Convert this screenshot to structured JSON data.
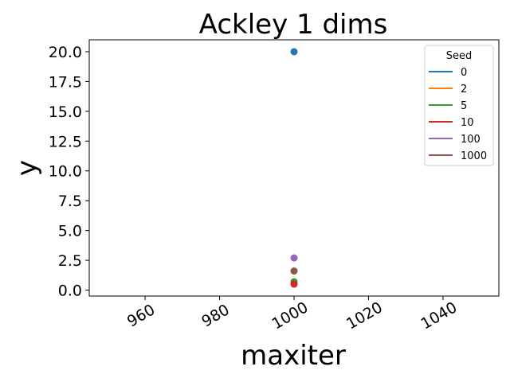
{
  "chart_data": {
    "type": "scatter",
    "title": "Ackley 1 dims",
    "xlabel": "maxiter",
    "ylabel": "y",
    "xlim": [
      945,
      1055
    ],
    "ylim": [
      -0.5,
      21.0
    ],
    "x_ticks": [
      960,
      980,
      1000,
      1020,
      1040
    ],
    "y_ticks": [
      0.0,
      2.5,
      5.0,
      7.5,
      10.0,
      12.5,
      15.0,
      17.5,
      20.0
    ],
    "grid": false,
    "legend": {
      "title": "Seed",
      "placement": "top-right"
    },
    "series": [
      {
        "name": "0",
        "color": "#1f77b4",
        "points": [
          [
            1000,
            20.0
          ]
        ]
      },
      {
        "name": "2",
        "color": "#ff7f0e",
        "points": [
          [
            1000,
            0.6
          ]
        ]
      },
      {
        "name": "5",
        "color": "#2ca02c",
        "points": [
          [
            1000,
            0.7
          ]
        ]
      },
      {
        "name": "10",
        "color": "#d62728",
        "points": [
          [
            1000,
            0.5
          ]
        ]
      },
      {
        "name": "100",
        "color": "#9467bd",
        "points": [
          [
            1000,
            2.7
          ]
        ]
      },
      {
        "name": "1000",
        "color": "#8c564b",
        "points": [
          [
            1000,
            1.6
          ]
        ]
      }
    ]
  }
}
